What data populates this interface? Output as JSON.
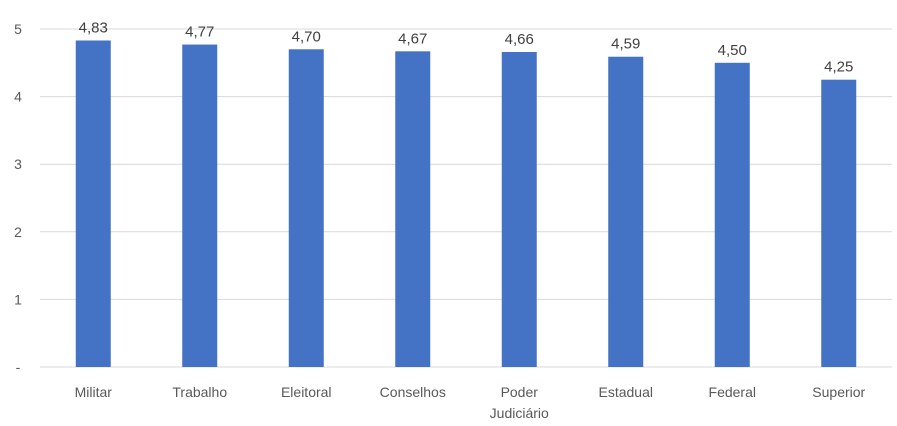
{
  "chart_data": {
    "type": "bar",
    "categories": [
      [
        "Militar"
      ],
      [
        "Trabalho"
      ],
      [
        "Eleitoral"
      ],
      [
        "Conselhos"
      ],
      [
        "Poder",
        "Judiciário"
      ],
      [
        "Estadual"
      ],
      [
        "Federal"
      ],
      [
        "Superior"
      ]
    ],
    "values": [
      4.83,
      4.77,
      4.7,
      4.67,
      4.66,
      4.59,
      4.5,
      4.25
    ],
    "data_labels": [
      "4,83",
      "4,77",
      "4,70",
      "4,67",
      "4,66",
      "4,59",
      "4,50",
      "4,25"
    ],
    "y_ticks": [
      {
        "value": 0,
        "label": "-"
      },
      {
        "value": 1,
        "label": "1"
      },
      {
        "value": 2,
        "label": "2"
      },
      {
        "value": 3,
        "label": "3"
      },
      {
        "value": 4,
        "label": "4"
      },
      {
        "value": 5,
        "label": "5"
      }
    ],
    "ylim": [
      0,
      5
    ],
    "grid": true,
    "bar_color": "#4472c4"
  }
}
